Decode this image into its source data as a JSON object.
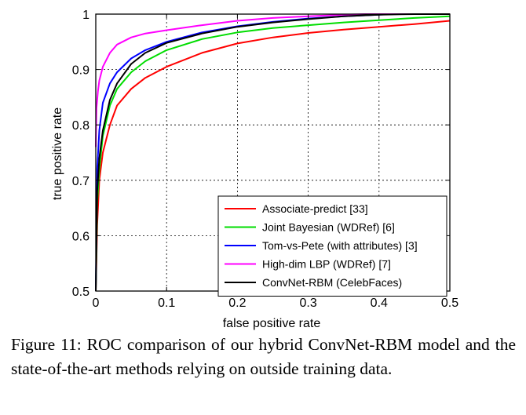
{
  "chart_data": {
    "type": "line",
    "title": "",
    "xlabel": "false positive rate",
    "ylabel": "true positive rate",
    "xlim": [
      0,
      0.5
    ],
    "ylim": [
      0.5,
      1
    ],
    "xticks": [
      "0",
      "0.1",
      "0.2",
      "0.3",
      "0.4",
      "0.5"
    ],
    "yticks": [
      "0.5",
      "0.6",
      "0.7",
      "0.8",
      "0.9",
      "1"
    ],
    "grid": true,
    "legend_position": "bottom-right",
    "series": [
      {
        "name": "Associate-predict [33]",
        "color": "#ff0000",
        "x": [
          0,
          0.002,
          0.005,
          0.01,
          0.02,
          0.03,
          0.05,
          0.07,
          0.1,
          0.15,
          0.2,
          0.25,
          0.3,
          0.35,
          0.4,
          0.45,
          0.5
        ],
        "y": [
          0.5,
          0.62,
          0.7,
          0.75,
          0.8,
          0.835,
          0.865,
          0.885,
          0.905,
          0.93,
          0.947,
          0.958,
          0.966,
          0.972,
          0.977,
          0.982,
          0.988
        ]
      },
      {
        "name": "Joint Bayesian (WDRef) [6]",
        "color": "#00dd00",
        "x": [
          0,
          0.002,
          0.005,
          0.01,
          0.02,
          0.03,
          0.05,
          0.07,
          0.1,
          0.15,
          0.2,
          0.25,
          0.3,
          0.35,
          0.4,
          0.45,
          0.5
        ],
        "y": [
          0.5,
          0.66,
          0.72,
          0.78,
          0.835,
          0.865,
          0.895,
          0.915,
          0.935,
          0.955,
          0.967,
          0.975,
          0.98,
          0.985,
          0.989,
          0.993,
          0.996
        ]
      },
      {
        "name": "Tom-vs-Pete (with attributes) [3]",
        "color": "#0000ff",
        "x": [
          0,
          0.002,
          0.005,
          0.01,
          0.02,
          0.03,
          0.05,
          0.07,
          0.1,
          0.15,
          0.2,
          0.25,
          0.3,
          0.35,
          0.4,
          0.42,
          0.5
        ],
        "y": [
          0.5,
          0.72,
          0.79,
          0.84,
          0.875,
          0.895,
          0.92,
          0.935,
          0.95,
          0.967,
          0.978,
          0.986,
          0.992,
          0.996,
          0.999,
          1.0,
          1.0
        ]
      },
      {
        "name": "High-dim LBP (WDRef) [7]",
        "color": "#ff00ff",
        "x": [
          0,
          0.001,
          0.003,
          0.005,
          0.01,
          0.02,
          0.03,
          0.05,
          0.07,
          0.1,
          0.15,
          0.2,
          0.25,
          0.3,
          0.35,
          0.38,
          0.5
        ],
        "y": [
          0.76,
          0.83,
          0.86,
          0.88,
          0.905,
          0.93,
          0.945,
          0.958,
          0.965,
          0.971,
          0.98,
          0.988,
          0.993,
          0.996,
          0.999,
          1.0,
          1.0
        ]
      },
      {
        "name": "ConvNet-RBM (CelebFaces)",
        "color": "#000000",
        "x": [
          0,
          0.002,
          0.005,
          0.01,
          0.02,
          0.03,
          0.05,
          0.07,
          0.1,
          0.15,
          0.2,
          0.25,
          0.3,
          0.35,
          0.4,
          0.45,
          0.5
        ],
        "y": [
          0.5,
          0.68,
          0.74,
          0.79,
          0.845,
          0.875,
          0.91,
          0.93,
          0.948,
          0.965,
          0.977,
          0.985,
          0.991,
          0.996,
          0.999,
          1.0,
          1.0
        ]
      }
    ]
  },
  "caption": "Figure 11: ROC comparison of our hybrid ConvNet-RBM model and the state-of-the-art methods relying on outside training data."
}
